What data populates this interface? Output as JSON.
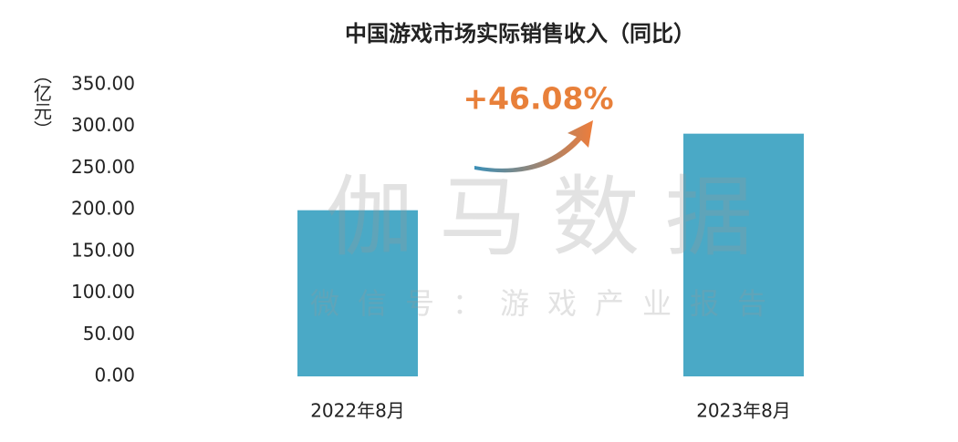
{
  "chart_data": {
    "type": "bar",
    "title": "中国游戏市场实际销售收入（同比）",
    "y_axis_label": "（亿元）",
    "categories": [
      "2022年8月",
      "2023年8月"
    ],
    "values": [
      199.4,
      291.3
    ],
    "color": "#4aa9c6",
    "annotation": "+46.08%",
    "annotation_color": "#e8803a",
    "watermark": "伽马数据",
    "watermark_subtitle": "微信号：游戏产业报告",
    "ylim": [
      0,
      350
    ],
    "yticks": [
      {
        "value": 0,
        "label": "0.00"
      },
      {
        "value": 50,
        "label": "50.00"
      },
      {
        "value": 100,
        "label": "100.00"
      },
      {
        "value": 150,
        "label": "150.00"
      },
      {
        "value": 200,
        "label": "200.00"
      },
      {
        "value": 250,
        "label": "250.00"
      },
      {
        "value": 300,
        "label": "300.00"
      },
      {
        "value": 350,
        "label": "350.00"
      }
    ],
    "grid": false
  }
}
